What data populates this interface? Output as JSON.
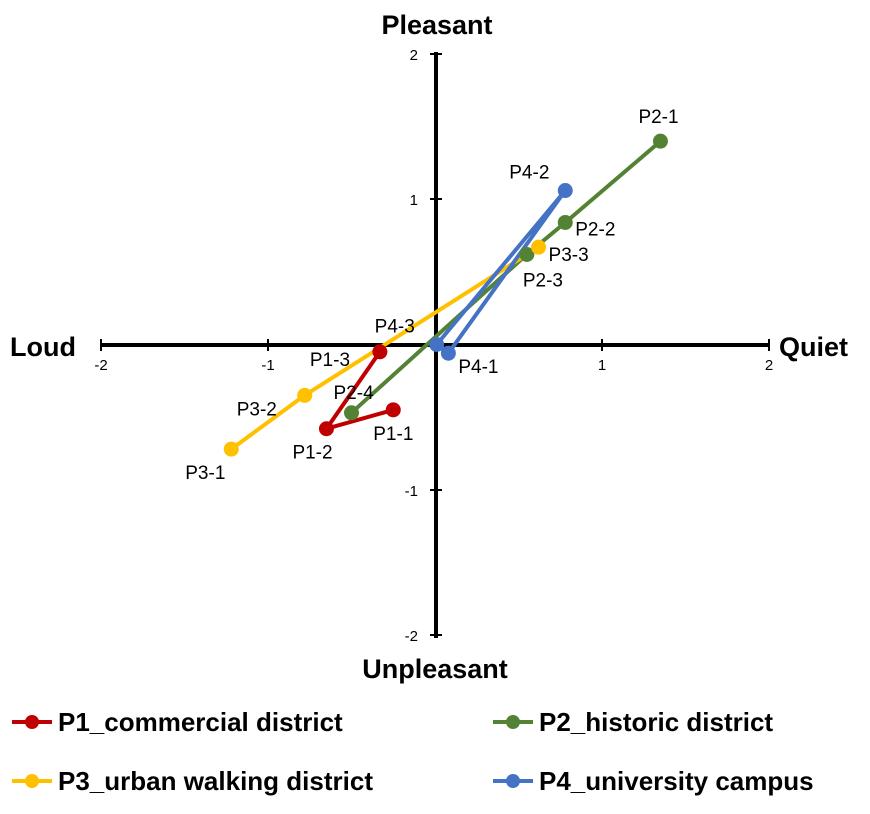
{
  "chart_data": {
    "type": "scatter",
    "title": "",
    "xlim": [
      -2,
      2
    ],
    "ylim": [
      -2,
      2
    ],
    "x_ticks": [
      "-2",
      "-1",
      "1",
      "2"
    ],
    "y_ticks": [
      "2",
      "1",
      "-1",
      "-2"
    ],
    "grid": false,
    "legend_position": "bottom",
    "direction_labels": {
      "top": "Pleasant",
      "bottom": "Unpleasant",
      "left": "Loud",
      "right": "Quiet"
    },
    "series": [
      {
        "name": "P1_commercial district",
        "color": "#c00000",
        "points": [
          {
            "label": "P1-1",
            "x": -0.25,
            "y": -0.45
          },
          {
            "label": "P1-2",
            "x": -0.65,
            "y": -0.58
          },
          {
            "label": "P1-3",
            "x": -0.33,
            "y": -0.05
          }
        ]
      },
      {
        "name": "P2_historic district",
        "color": "#548235",
        "points": [
          {
            "label": "P2-1",
            "x": 1.35,
            "y": 1.4
          },
          {
            "label": "P2-2",
            "x": 0.78,
            "y": 0.84
          },
          {
            "label": "P2-3",
            "x": 0.55,
            "y": 0.62
          },
          {
            "label": "P2-4",
            "x": -0.5,
            "y": -0.47
          }
        ]
      },
      {
        "name": "P3_urban walking district",
        "color": "#ffc000",
        "points": [
          {
            "label": "P3-1",
            "x": -1.22,
            "y": -0.72
          },
          {
            "label": "P3-2",
            "x": -0.78,
            "y": -0.35
          },
          {
            "label": "P3-3",
            "x": 0.62,
            "y": 0.67
          }
        ]
      },
      {
        "name": "P4_university campus",
        "color": "#4472c4",
        "points": [
          {
            "label": "P4-1",
            "x": 0.08,
            "y": -0.06
          },
          {
            "label": "P4-2",
            "x": 0.78,
            "y": 1.06
          },
          {
            "label": "P4-3",
            "x": 0.01,
            "y": 0.0
          }
        ]
      }
    ]
  }
}
